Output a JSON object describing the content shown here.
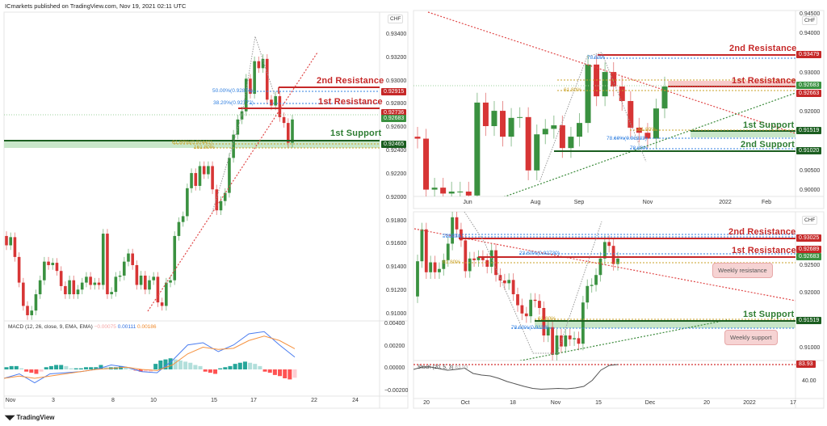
{
  "header": {
    "publisher": "ICmarkets published on TradingView.com, Nov 19, 2021 02:11 UTC"
  },
  "footer": {
    "brand": "TradingView",
    "logo": "TV"
  },
  "colors": {
    "up": "#3a9140",
    "down": "#d73535",
    "resistance": "#c62828",
    "support": "#1b5e20",
    "fib_blue": "#2f7fe0",
    "fib_gold": "#c9a227",
    "macd": "#4a7cf0",
    "signal": "#f59240"
  },
  "left": {
    "currency": "CHF",
    "price_ticks": [
      "0.93400",
      "0.93200",
      "0.93000",
      "0.92800",
      "0.92600",
      "0.92400",
      "0.92200",
      "0.92000",
      "0.91800",
      "0.91600",
      "0.91400",
      "0.91200",
      "0.91000"
    ],
    "badges": [
      {
        "value": "0.92915",
        "color": "#c62828"
      },
      {
        "value": "0.92736",
        "color": "#c62828"
      },
      {
        "value": "0.92683",
        "color": "#3a9140"
      },
      {
        "value": "0.92465",
        "color": "#1b5e20"
      }
    ],
    "labels": {
      "res2": "2nd Resistance",
      "res1": "1st Resistance",
      "sup1": "1st Support",
      "fib50": "50.00%(0.92874)",
      "fib38": "38.20%(0.92772)",
      "fib61": "61.80%(0.92441)",
      "fib161": "161.80%"
    },
    "macd": {
      "title": "MACD (12, 26, close, 9, EMA, EMA)",
      "hist_value": "−0.00075",
      "macd_value": "0.00111",
      "signal_value": "0.00186",
      "ticks": [
        "0.00400",
        "0.00200",
        "0.00000",
        "−0.00200"
      ]
    },
    "time_ticks": [
      "Nov",
      "3",
      "8",
      "10",
      "15",
      "17",
      "22",
      "24"
    ]
  },
  "top_right": {
    "currency": "CHF",
    "price_ticks": [
      "0.94500",
      "0.94000",
      "0.93000",
      "0.92000",
      "0.90500",
      "0.90000"
    ],
    "badges": [
      {
        "value": "0.93479",
        "color": "#c62828"
      },
      {
        "value": "0.92683",
        "color": "#3a9140"
      },
      {
        "value": "0.92663",
        "color": "#c62828"
      },
      {
        "value": "0.91519",
        "color": "#1b5e20"
      },
      {
        "value": "0.91020",
        "color": "#1b5e20"
      }
    ],
    "labels": {
      "res2": "2nd Resistance",
      "res1": "1st Resistance",
      "sup1": "1st Support",
      "sup2": "2nd Support",
      "fib78a": "78.60%",
      "fib61": "61.80%",
      "fib78b": "78.60%(0.91333)",
      "fib78c": "78.60%",
      "fib61b": "61.80%"
    },
    "time_ticks": [
      "Jun",
      "Aug",
      "Sep",
      "Nov",
      "2022",
      "Feb"
    ]
  },
  "bottom_right": {
    "currency": "CHF",
    "price_ticks": [
      "0.92500",
      "0.92000",
      "0.91000"
    ],
    "stoch_ticks": [
      "40.00"
    ],
    "badges": [
      {
        "value": "0.93025",
        "color": "#c62828"
      },
      {
        "value": "0.92689",
        "color": "#c62828"
      },
      {
        "value": "0.92683",
        "color": "#3a9140"
      },
      {
        "value": "0.91519",
        "color": "#1b5e20"
      }
    ],
    "stoch_badge": {
      "value": "83.93",
      "color": "#c62828"
    },
    "labels": {
      "res2": "2nd Resistance",
      "res1": "1st Resistance",
      "sup1": "1st Support",
      "weekly_res": "Weekly resistance",
      "weekly_sup": "Weekly support",
      "fib78": "78.60%",
      "fib23": "23.60%(0.92730)",
      "fib61a": "61.80%",
      "fib61b": "61.80%",
      "fib78b": "78.60%(0.9138)",
      "stoch": "Stoch (20, 5, 3)",
      "stoch_val": "83.93"
    },
    "time_ticks": [
      "20",
      "Oct",
      "18",
      "Nov",
      "15",
      "Dec",
      "20",
      "2022",
      "17"
    ]
  },
  "chart_data": [
    {
      "type": "candlestick",
      "name": "USDCHF H4",
      "currency": "CHF",
      "ylim": [
        0.909,
        0.9345
      ],
      "open0": 0.9168,
      "closes": [
        0.916,
        0.9167,
        0.915,
        0.9128,
        0.9108,
        0.91,
        0.9104,
        0.9118,
        0.913,
        0.9146,
        0.9143,
        0.9145,
        0.9138,
        0.9125,
        0.9118,
        0.913,
        0.9118,
        0.9122,
        0.9128,
        0.9133,
        0.9126,
        0.9128,
        0.9126,
        0.917,
        0.9118,
        0.912,
        0.9133,
        0.9134,
        0.9146,
        0.9153,
        0.9143,
        0.9126,
        0.9134,
        0.9122,
        0.913,
        0.9133,
        0.9111,
        0.9108,
        0.9128,
        0.913,
        0.9168,
        0.918,
        0.9185,
        0.9209,
        0.9222,
        0.9211,
        0.9228,
        0.9221,
        0.9228,
        0.9208,
        0.919,
        0.9198,
        0.9205,
        0.9235,
        0.9255,
        0.9268,
        0.9275,
        0.9303,
        0.929,
        0.9318,
        0.9312,
        0.932,
        0.9285,
        0.928,
        0.9288,
        0.927,
        0.9265,
        0.9248,
        0.9268
      ],
      "levels": {
        "resistance_2": 0.92915,
        "resistance_1": 0.92736,
        "support_1": 0.92465,
        "current": 0.92683
      }
    },
    {
      "type": "macd",
      "name": "MACD (12, 26, close, 9, EMA, EMA)",
      "ylim": [
        -0.0025,
        0.0042
      ],
      "macd": [
        -0.0008,
        -0.0004,
        -0.0012,
        -0.0004,
        -0.0003,
        -0.0002,
        0.0,
        0.0004,
        0.0002,
        -0.0002,
        -0.0003,
        0.0008,
        0.0022,
        0.0024,
        0.0016,
        0.0022,
        0.0032,
        0.0034,
        0.0022,
        0.00111
      ],
      "signal": [
        -0.0008,
        -0.0006,
        -0.0008,
        -0.0006,
        -0.0004,
        -0.0002,
        0.0,
        0.0001,
        0.0002,
        0.0,
        -0.0001,
        0.0004,
        0.0014,
        0.002,
        0.0018,
        0.0019,
        0.0026,
        0.003,
        0.0026,
        0.00186
      ],
      "histogram": [
        0.0002,
        0.0003,
        0.0003,
        0.0001,
        -0.0002,
        -0.0003,
        -0.0004,
        -0.0002,
        0.0002,
        0.0003,
        0.0004,
        0.0004,
        0.0003,
        0.0001,
        0.0001,
        0.0001,
        0.0002,
        0.0002,
        0.0002,
        0.0004,
        0.0002,
        0.0002,
        0.0002,
        0.0003,
        0.0002,
        0.0,
        -0.0001,
        -0.0002,
        -0.0002,
        -0.0002,
        0.0005,
        0.0008,
        0.0009,
        0.001,
        0.0009,
        0.0008,
        0.0007,
        0.0006,
        0.0004,
        0.0003,
        -0.0002,
        -0.0003,
        -0.0004,
        0.0001,
        0.0002,
        0.0003,
        0.0005,
        0.0006,
        0.0007,
        0.0006,
        0.0005,
        0.0003,
        -0.0002,
        -0.0003,
        -0.0005,
        -0.0006,
        -0.0008,
        -0.0009,
        -0.00075
      ]
    },
    {
      "type": "candlestick",
      "name": "USDCHF Weekly",
      "currency": "CHF",
      "ylim": [
        0.8995,
        0.9455
      ],
      "open0": 0.914,
      "closes": [
        0.9135,
        0.9005,
        0.901,
        0.8995,
        0.9,
        0.9,
        0.899,
        0.9227,
        0.9167,
        0.9206,
        0.914,
        0.9188,
        0.919,
        0.9054,
        0.9146,
        0.916,
        0.9169,
        0.9111,
        0.914,
        0.9175,
        0.9324,
        0.9243,
        0.9305,
        0.9268,
        0.9231,
        0.9163,
        0.915,
        0.9135,
        0.9212,
        0.9268
      ],
      "levels": {
        "resistance_2": 0.93479,
        "resistance_1": 0.92663,
        "support_1": 0.91519,
        "support_2": 0.9102,
        "current": 0.92683
      }
    },
    {
      "type": "candlestick",
      "name": "USDCHF Daily",
      "currency": "CHF",
      "ylim": [
        0.9075,
        0.935
      ],
      "open0": 0.9196,
      "closes": [
        0.926,
        0.9318,
        0.924,
        0.9258,
        0.924,
        0.9246,
        0.9262,
        0.9292,
        0.934,
        0.9318,
        0.9298,
        0.9242,
        0.9265,
        0.9262,
        0.9268,
        0.9262,
        0.925,
        0.928,
        0.9235,
        0.9225,
        0.922,
        0.9226,
        0.92,
        0.918,
        0.9165,
        0.916,
        0.919,
        0.9188,
        0.9175,
        0.9125,
        0.914,
        0.909,
        0.9125,
        0.9105,
        0.9125,
        0.9118,
        0.912,
        0.911,
        0.9185,
        0.9215,
        0.9217,
        0.9235,
        0.9265,
        0.9295,
        0.9288,
        0.9255,
        0.9265
      ],
      "levels": {
        "resistance_2": 0.93025,
        "resistance_1": 0.92689,
        "support_1": 0.91519,
        "current": 0.92683
      }
    },
    {
      "type": "line",
      "name": "Stoch (20, 5, 3)",
      "ylim": [
        0,
        100
      ],
      "values": [
        72,
        78,
        78,
        74,
        70,
        72,
        75,
        62,
        58,
        56,
        50,
        42,
        36,
        30,
        25,
        23,
        24,
        25,
        24,
        26,
        30,
        45,
        70,
        82,
        83.93
      ]
    }
  ]
}
